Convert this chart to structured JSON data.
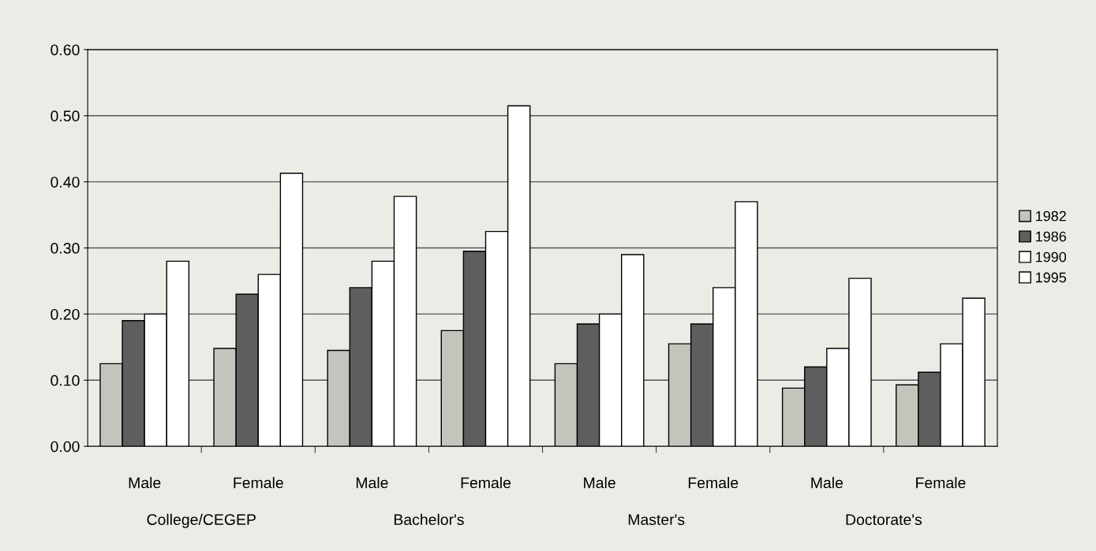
{
  "chart_data": {
    "type": "bar",
    "categories": [
      "Male",
      "Female",
      "Male",
      "Female",
      "Male",
      "Female",
      "Male",
      "Female"
    ],
    "series": [
      {
        "name": "1982",
        "color": "#c4c4bc",
        "values": [
          0.125,
          0.148,
          0.145,
          0.175,
          0.125,
          0.155,
          0.088,
          0.093
        ]
      },
      {
        "name": "1986",
        "color": "#5e5e5e",
        "values": [
          0.19,
          0.23,
          0.24,
          0.295,
          0.185,
          0.185,
          0.12,
          0.112
        ]
      },
      {
        "name": "1990",
        "color": "#ffffff",
        "values": [
          0.2,
          0.26,
          0.28,
          0.325,
          0.2,
          0.24,
          0.148,
          0.155
        ]
      },
      {
        "name": "1995",
        "color": "#ffffff",
        "values": [
          0.28,
          0.413,
          0.378,
          0.515,
          0.29,
          0.37,
          0.254,
          0.224
        ]
      }
    ],
    "annotations": [
      "College/CEGEP",
      "Bachelor's",
      "Master's",
      "Doctorate's"
    ],
    "ylim": [
      0,
      0.6
    ],
    "yticks": [
      {
        "value": 0,
        "label": "0.00"
      },
      {
        "value": 0.1,
        "label": "0.10"
      },
      {
        "value": 0.2,
        "label": "0.20"
      },
      {
        "value": 0.3,
        "label": "0.30"
      },
      {
        "value": 0.4,
        "label": "0.40"
      },
      {
        "value": 0.5,
        "label": "0.50"
      },
      {
        "value": 0.6,
        "label": "0.60"
      }
    ],
    "grid": "y",
    "legend": "right"
  }
}
